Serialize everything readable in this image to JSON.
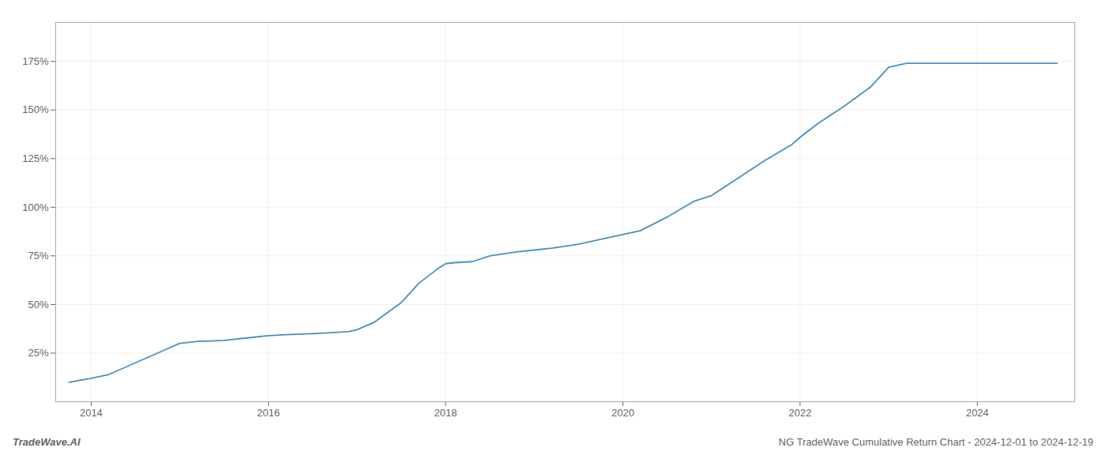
{
  "chart_data": {
    "type": "line",
    "title": "NG TradeWave Cumulative Return Chart - 2024-12-01 to 2024-12-19",
    "annotations": [
      "TradeWave.AI"
    ],
    "x": [
      2013.75,
      2014.0,
      2014.2,
      2014.5,
      2014.8,
      2015.0,
      2015.2,
      2015.5,
      2015.8,
      2016.0,
      2016.2,
      2016.5,
      2016.7,
      2016.9,
      2017.0,
      2017.2,
      2017.5,
      2017.7,
      2017.9,
      2018.0,
      2018.1,
      2018.3,
      2018.5,
      2018.8,
      2019.0,
      2019.2,
      2019.5,
      2019.8,
      2020.0,
      2020.2,
      2020.5,
      2020.8,
      2021.0,
      2021.3,
      2021.6,
      2021.9,
      2022.0,
      2022.2,
      2022.5,
      2022.8,
      2023.0,
      2023.1,
      2023.2,
      2023.5,
      2023.8,
      2024.0,
      2024.5,
      2024.9
    ],
    "values": [
      10,
      12,
      14,
      20,
      26,
      30,
      31,
      31.5,
      33,
      34,
      34.5,
      35,
      35.5,
      36,
      37,
      41,
      51,
      61,
      68,
      71,
      71.5,
      72,
      75,
      77,
      78,
      79,
      81,
      84,
      86,
      88,
      95,
      103,
      106,
      115,
      124,
      132,
      136,
      143,
      152,
      162,
      172,
      173,
      174,
      174,
      174,
      174,
      174,
      174
    ],
    "color": "#4a8fc0",
    "xlim": [
      2013.6,
      2025.1
    ],
    "ylim": [
      0,
      195
    ],
    "xticks": [
      2014,
      2016,
      2018,
      2020,
      2022,
      2024
    ],
    "yticks": [
      {
        "value": 25,
        "label": "25%"
      },
      {
        "value": 50,
        "label": "50%"
      },
      {
        "value": 75,
        "label": "75%"
      },
      {
        "value": 100,
        "label": "100%"
      },
      {
        "value": 125,
        "label": "125%"
      },
      {
        "value": 150,
        "label": "150%"
      },
      {
        "value": 175,
        "label": "175%"
      }
    ],
    "grid": true
  }
}
